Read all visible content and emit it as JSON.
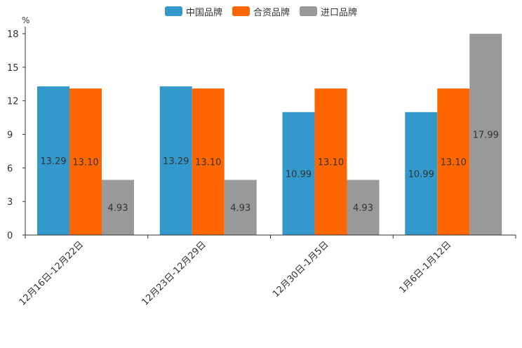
{
  "chart_data": {
    "type": "bar",
    "unit": "%",
    "categories": [
      "12月16日-12月22日",
      "12月23日-12月29日",
      "12月30日-1月5日",
      "1月6日-1月12日"
    ],
    "series": [
      {
        "name": "中国品牌",
        "color": "#3399CC",
        "values": [
          13.29,
          13.29,
          10.99,
          10.99
        ],
        "labels": [
          "13.29",
          "13.29",
          "10.99",
          "10.99"
        ]
      },
      {
        "name": "合资品牌",
        "color": "#FF6600",
        "values": [
          13.1,
          13.1,
          13.1,
          13.1
        ],
        "labels": [
          "13.10",
          "13.10",
          "13.10",
          "13.10"
        ]
      },
      {
        "name": "进口品牌",
        "color": "#999999",
        "values": [
          4.93,
          4.93,
          4.93,
          17.99
        ],
        "labels": [
          "4.93",
          "4.93",
          "4.93",
          "17.99"
        ]
      }
    ],
    "ylim": [
      0,
      18
    ],
    "yticks": [
      "0",
      "3",
      "6",
      "9",
      "12",
      "15",
      "18"
    ],
    "legend_position": "top-center"
  }
}
